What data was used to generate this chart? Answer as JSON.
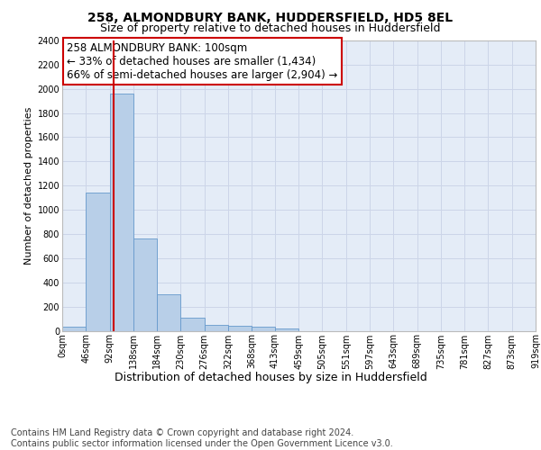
{
  "title": "258, ALMONDBURY BANK, HUDDERSFIELD, HD5 8EL",
  "subtitle": "Size of property relative to detached houses in Huddersfield",
  "xlabel": "Distribution of detached houses by size in Huddersfield",
  "ylabel": "Number of detached properties",
  "bar_values": [
    30,
    1140,
    1960,
    760,
    300,
    105,
    50,
    40,
    30,
    20,
    0,
    0,
    0,
    0,
    0,
    0,
    0,
    0,
    0,
    0
  ],
  "bin_edges": [
    0,
    46,
    92,
    138,
    184,
    230,
    276,
    322,
    368,
    413,
    459,
    505,
    551,
    597,
    643,
    689,
    735,
    781,
    827,
    873,
    919
  ],
  "bar_color": "#b8cfe8",
  "bar_edgecolor": "#6699cc",
  "vline_x": 100,
  "vline_color": "#cc0000",
  "annotation_text": "258 ALMONDBURY BANK: 100sqm\n← 33% of detached houses are smaller (1,434)\n66% of semi-detached houses are larger (2,904) →",
  "annotation_box_color": "#cc0000",
  "ylim": [
    0,
    2400
  ],
  "yticks": [
    0,
    200,
    400,
    600,
    800,
    1000,
    1200,
    1400,
    1600,
    1800,
    2000,
    2200,
    2400
  ],
  "xtick_labels": [
    "0sqm",
    "46sqm",
    "92sqm",
    "138sqm",
    "184sqm",
    "230sqm",
    "276sqm",
    "322sqm",
    "368sqm",
    "413sqm",
    "459sqm",
    "505sqm",
    "551sqm",
    "597sqm",
    "643sqm",
    "689sqm",
    "735sqm",
    "781sqm",
    "827sqm",
    "873sqm",
    "919sqm"
  ],
  "grid_color": "#ccd5e8",
  "bg_color": "#e4ecf7",
  "footer_text": "Contains HM Land Registry data © Crown copyright and database right 2024.\nContains public sector information licensed under the Open Government Licence v3.0.",
  "title_fontsize": 10,
  "subtitle_fontsize": 9,
  "xlabel_fontsize": 9,
  "ylabel_fontsize": 8,
  "tick_fontsize": 7,
  "annotation_fontsize": 8.5,
  "footer_fontsize": 7
}
